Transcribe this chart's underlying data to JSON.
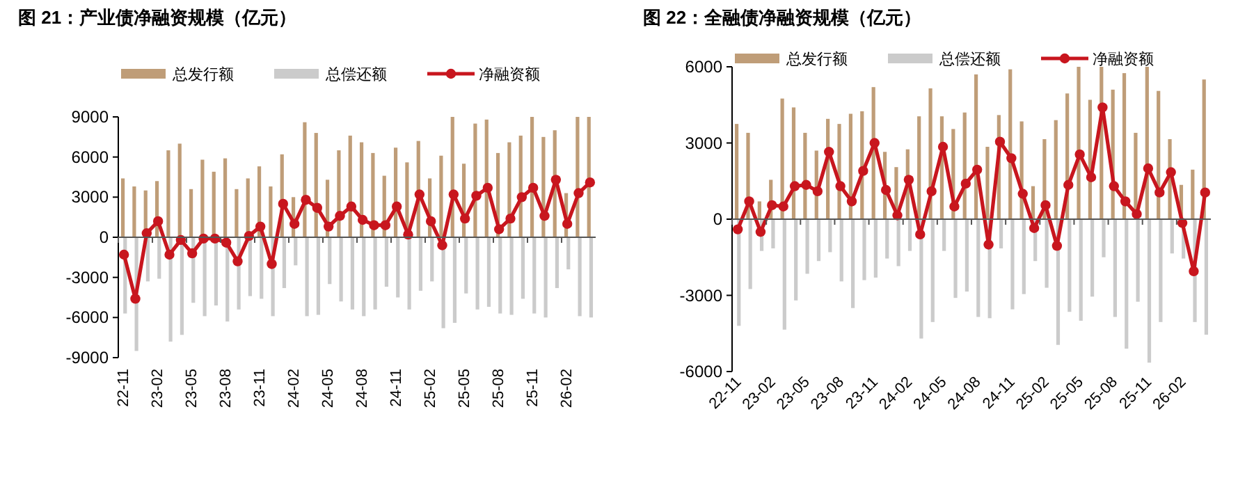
{
  "chart_data": [
    {
      "type": "bar",
      "title": "图 21：产业债净融资规模（亿元）",
      "legend": "top",
      "marker": "circle",
      "ylim": [
        -9000,
        9000
      ],
      "yticks": [
        -9000,
        -6000,
        -3000,
        0,
        3000,
        6000,
        9000
      ],
      "categories": [
        "22-11",
        null,
        null,
        "23-02",
        null,
        null,
        "23-05",
        null,
        null,
        "23-08",
        null,
        null,
        "23-11",
        null,
        null,
        "24-02",
        null,
        null,
        "24-05",
        null,
        null,
        "24-08",
        null,
        null,
        "24-11",
        null,
        null,
        "25-02",
        null,
        null,
        "25-05",
        null,
        null,
        "25-08",
        null,
        null,
        "25-11",
        null,
        null,
        "26-02",
        null,
        null
      ],
      "series": [
        {
          "name": "总发行额",
          "color": "#bf9d78",
          "values": [
            4400,
            3800,
            3500,
            4200,
            6500,
            7000,
            3600,
            5800,
            4900,
            5900,
            3600,
            4400,
            5300,
            3800,
            6200,
            3000,
            8600,
            7800,
            4300,
            6500,
            7600,
            7100,
            6300,
            4600,
            6700,
            5600,
            7200,
            4400,
            6100,
            9000,
            5500,
            8500,
            8800,
            6300,
            7100,
            7600,
            9000,
            7500,
            8000,
            3300,
            9000,
            9000
          ]
        },
        {
          "name": "总偿还额",
          "color": "#cbcbcb",
          "values": [
            -5700,
            -8500,
            -3300,
            -3100,
            -7800,
            -7300,
            -4900,
            -5900,
            -5100,
            -6300,
            -5400,
            -4400,
            -4600,
            -5900,
            -3800,
            -2100,
            -5900,
            -5800,
            -3500,
            -4800,
            -5400,
            -5900,
            -5400,
            -3700,
            -4500,
            -5400,
            -4000,
            -3300,
            -6800,
            -6400,
            -4200,
            -5400,
            -5200,
            -5700,
            -5800,
            -4600,
            -5700,
            -6000,
            -3800,
            -2400,
            -5900,
            -6000
          ]
        },
        {
          "name": "净融资额",
          "type": "line",
          "color": "#c8161e",
          "values": [
            -1300,
            -4600,
            300,
            1200,
            -1300,
            -200,
            -1200,
            -100,
            -100,
            -400,
            -1800,
            100,
            800,
            -2000,
            2500,
            1000,
            2800,
            2200,
            800,
            1600,
            2300,
            1300,
            900,
            900,
            2300,
            200,
            3200,
            1200,
            -600,
            3200,
            1400,
            3100,
            3700,
            600,
            1400,
            3000,
            3700,
            1600,
            4300,
            1000,
            3300,
            4100
          ]
        }
      ]
    },
    {
      "type": "bar",
      "title": "图 22：全融债净融资规模（亿元）",
      "legend": "top",
      "marker": "circle",
      "ylim": [
        -6000,
        6000
      ],
      "yticks": [
        -6000,
        -3000,
        0,
        3000,
        6000
      ],
      "categories": [
        "22-11",
        null,
        null,
        "23-02",
        null,
        null,
        "23-05",
        null,
        null,
        "23-08",
        null,
        null,
        "23-11",
        null,
        null,
        "24-02",
        null,
        null,
        "24-05",
        null,
        null,
        "24-08",
        null,
        null,
        "24-11",
        null,
        null,
        "25-02",
        null,
        null,
        "25-05",
        null,
        null,
        "25-08",
        null,
        null,
        "25-11",
        null,
        null,
        "26-02",
        null,
        null
      ],
      "series": [
        {
          "name": "总发行额",
          "color": "#bf9d78",
          "values": [
            3750,
            3400,
            700,
            1550,
            4750,
            4400,
            3400,
            2700,
            3950,
            3750,
            4150,
            4250,
            5200,
            2650,
            2050,
            2750,
            4050,
            5150,
            4050,
            3550,
            4200,
            5700,
            2850,
            4100,
            5900,
            3850,
            1300,
            3150,
            3900,
            4950,
            6000,
            4700,
            6000,
            5100,
            5750,
            3400,
            6000,
            5050,
            3150,
            1350,
            1950,
            5500
          ]
        },
        {
          "name": "总偿还额",
          "color": "#cbcbcb",
          "values": [
            -4200,
            -2750,
            -1250,
            -1150,
            -4350,
            -3200,
            -2150,
            -1650,
            -1300,
            -2450,
            -3500,
            -2400,
            -2300,
            -1550,
            -1850,
            -1250,
            -4700,
            -4050,
            -1250,
            -3100,
            -2850,
            -3850,
            -3900,
            -1150,
            -3550,
            -2950,
            -1650,
            -2700,
            -4950,
            -3650,
            -4000,
            -3050,
            -1500,
            -3850,
            -5100,
            -3250,
            -5650,
            -4050,
            -1350,
            -1550,
            -4050,
            -4550
          ]
        },
        {
          "name": "净融资额",
          "type": "line",
          "color": "#c8161e",
          "values": [
            -400,
            700,
            -500,
            550,
            500,
            1300,
            1350,
            1100,
            2650,
            1300,
            700,
            1900,
            3000,
            1150,
            150,
            1550,
            -600,
            1100,
            2850,
            500,
            1400,
            1950,
            -1000,
            3050,
            2400,
            1000,
            -350,
            550,
            -1050,
            1350,
            2550,
            1650,
            4400,
            1300,
            700,
            200,
            2000,
            1050,
            1850,
            -150,
            -2050,
            1050
          ]
        }
      ]
    }
  ]
}
